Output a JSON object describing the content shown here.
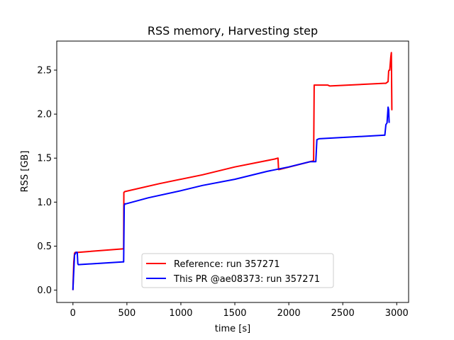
{
  "chart_data": {
    "type": "line",
    "title": "RSS memory, Harvesting step",
    "xlabel": "time [s]",
    "ylabel": "RSS [GB]",
    "xlim": [
      -150,
      3110
    ],
    "ylim": [
      -0.14,
      2.83
    ],
    "xticks": [
      0,
      500,
      1000,
      1500,
      2000,
      2500,
      3000
    ],
    "yticks": [
      0.0,
      0.5,
      1.0,
      1.5,
      2.0,
      2.5
    ],
    "xtick_labels": [
      "0",
      "500",
      "1000",
      "1500",
      "2000",
      "2500",
      "3000"
    ],
    "ytick_labels": [
      "0.0",
      "0.5",
      "1.0",
      "1.5",
      "2.0",
      "2.5"
    ],
    "grid": false,
    "legend_position": "bottom-center",
    "series": [
      {
        "name": "Reference: run 357271",
        "color": "#ff0000",
        "x": [
          0,
          3,
          8,
          15,
          22,
          30,
          50,
          470,
          472,
          480,
          800,
          1200,
          1500,
          1870,
          1900,
          1905,
          1910,
          2230,
          2235,
          2240,
          2360,
          2380,
          2880,
          2900,
          2920,
          2925,
          2930,
          2935,
          2945,
          2950,
          2955,
          2960
        ],
        "y": [
          0.0,
          0.15,
          0.32,
          0.42,
          0.43,
          0.43,
          0.43,
          0.47,
          1.11,
          1.12,
          1.21,
          1.31,
          1.4,
          1.49,
          1.5,
          1.37,
          1.37,
          1.47,
          2.33,
          2.33,
          2.33,
          2.32,
          2.35,
          2.35,
          2.37,
          2.49,
          2.5,
          2.5,
          2.65,
          2.7,
          2.05,
          2.05
        ]
      },
      {
        "name": "This PR @ae08373: run 357271",
        "color": "#0000ff",
        "x": [
          0,
          5,
          15,
          30,
          40,
          45,
          50,
          460,
          470,
          475,
          480,
          490,
          700,
          1000,
          1200,
          1500,
          1800,
          2000,
          2200,
          2250,
          2260,
          2280,
          2880,
          2890,
          2900,
          2910,
          2920,
          2925,
          2930
        ],
        "y": [
          0.0,
          0.15,
          0.4,
          0.43,
          0.43,
          0.3,
          0.29,
          0.32,
          0.32,
          0.96,
          0.98,
          0.98,
          1.05,
          1.13,
          1.19,
          1.26,
          1.35,
          1.4,
          1.46,
          1.46,
          1.71,
          1.72,
          1.76,
          1.76,
          1.88,
          1.9,
          2.08,
          2.05,
          1.9
        ]
      }
    ]
  }
}
